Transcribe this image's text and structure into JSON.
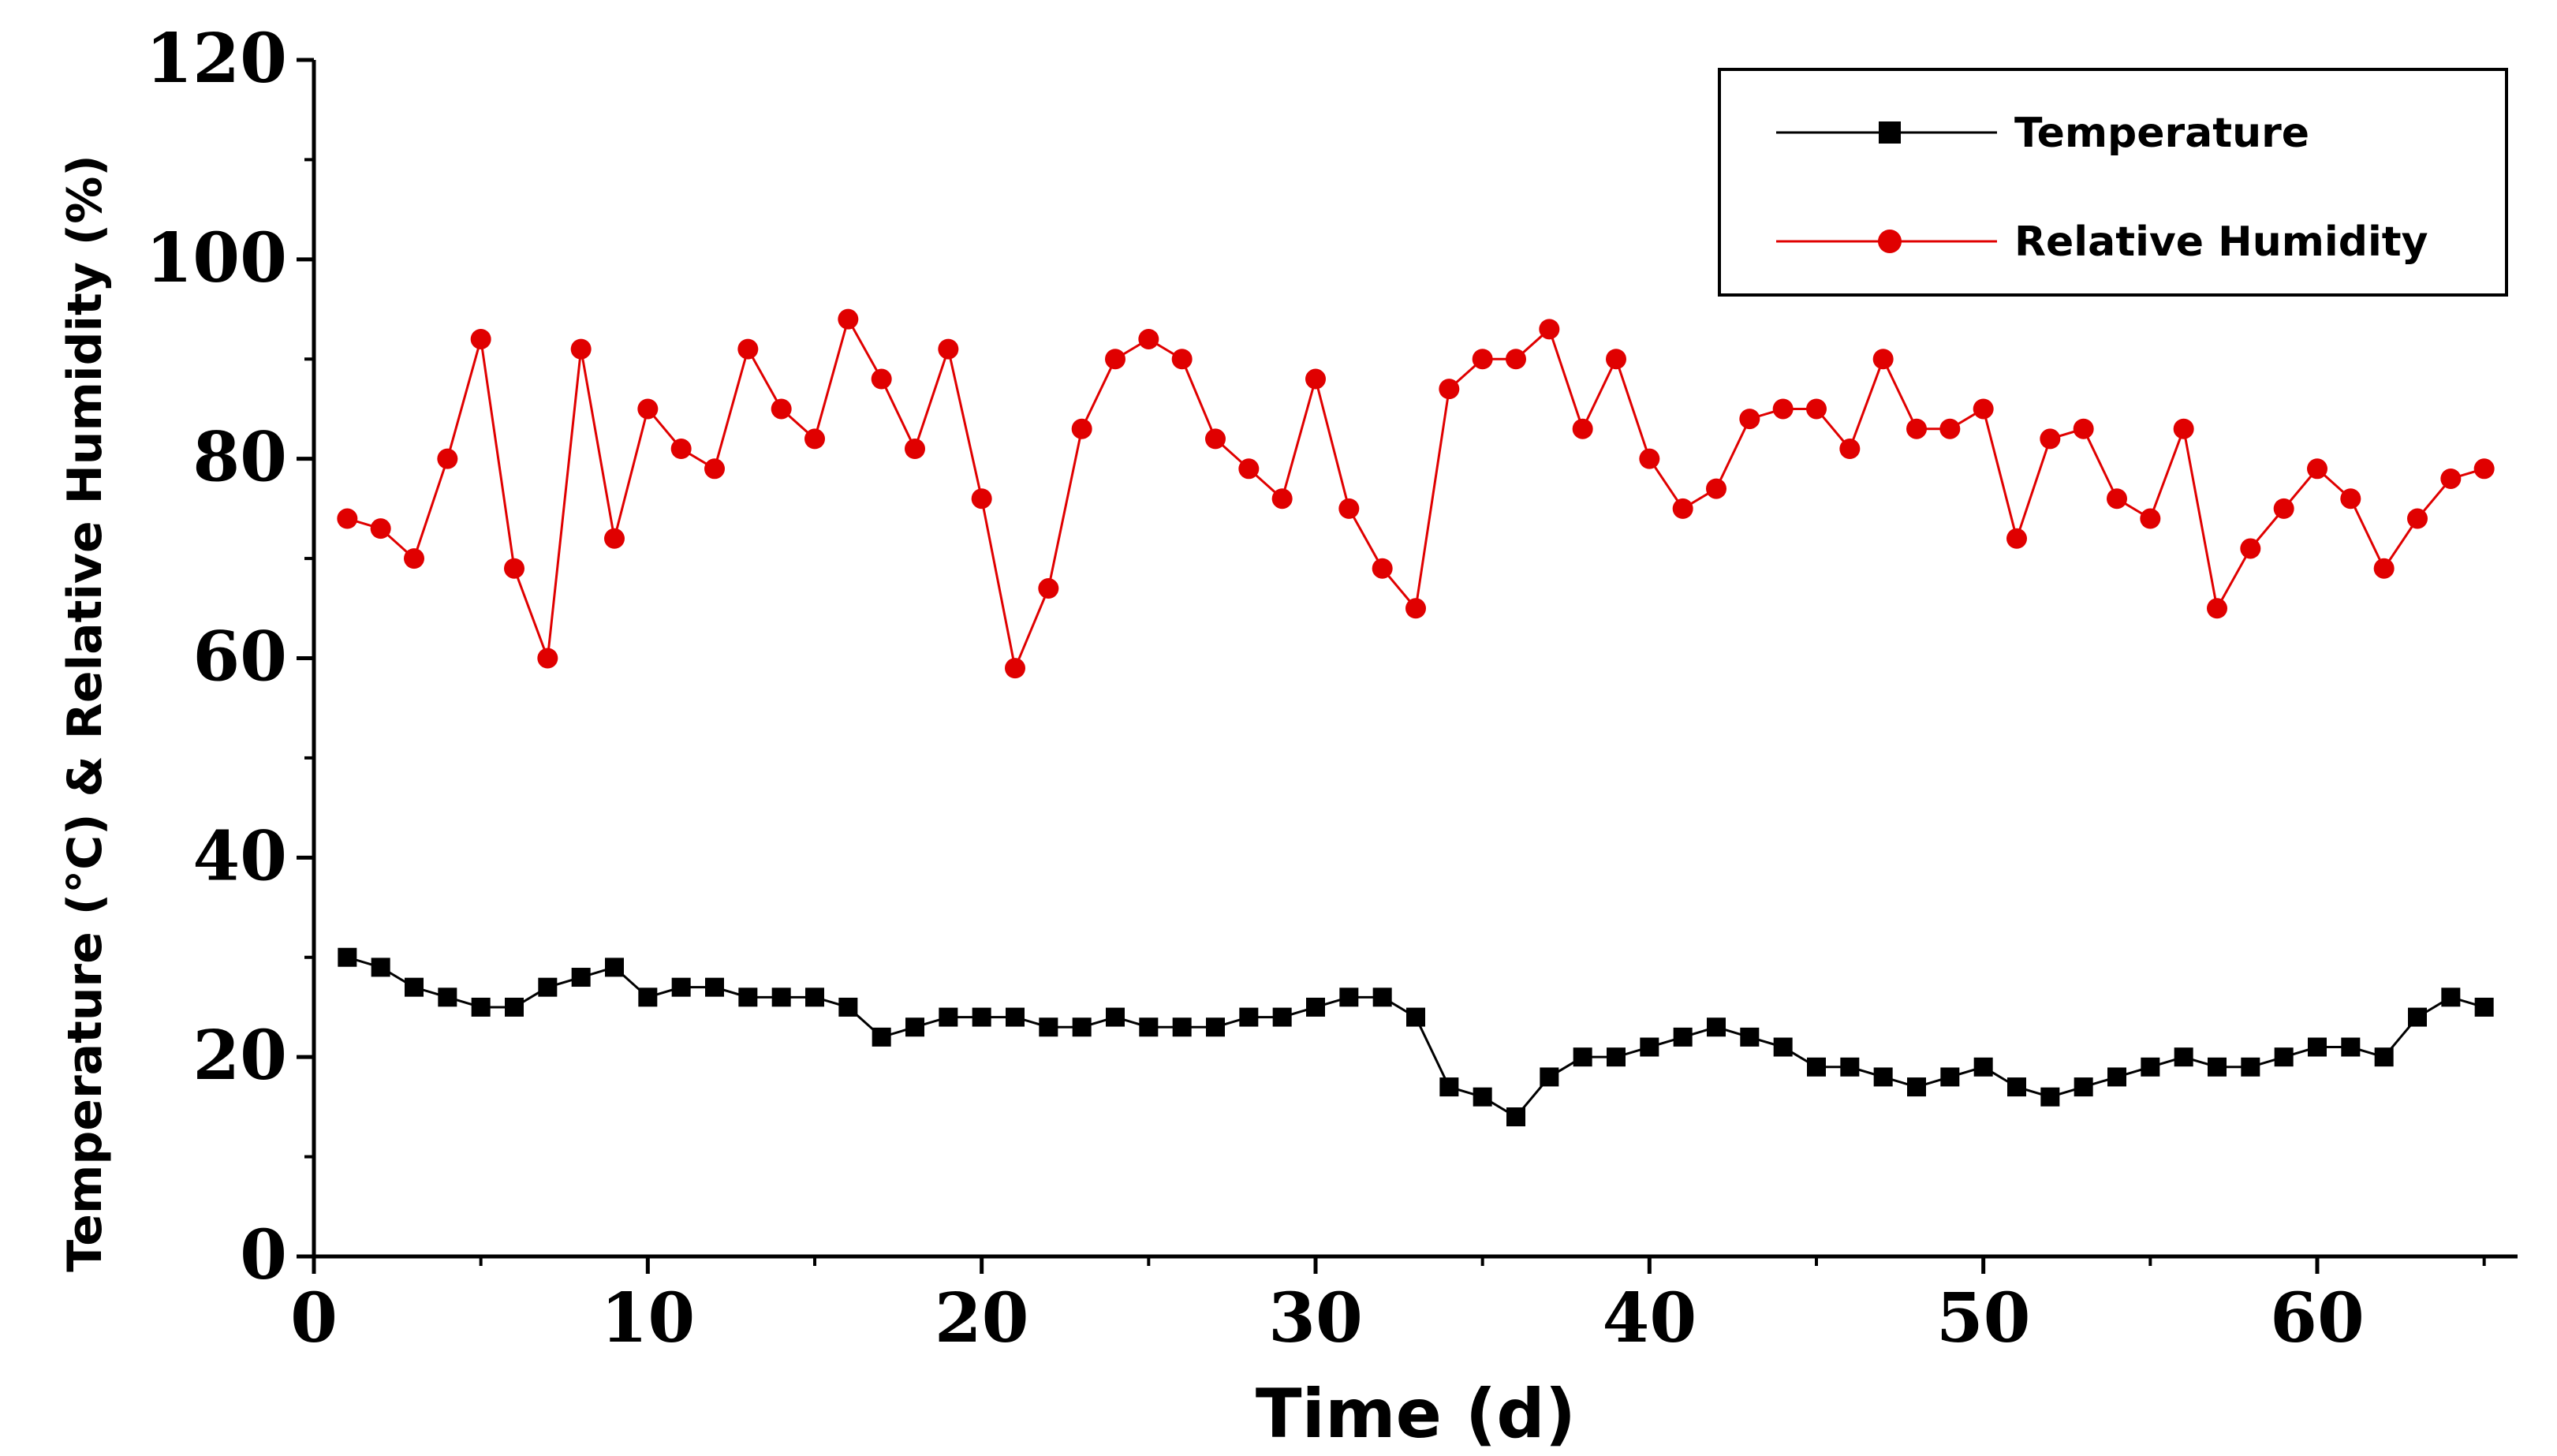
{
  "chart_data": {
    "type": "line",
    "title": "",
    "xlabel": "Time (d)",
    "ylabel": "Temperature (°C) & Relative Humidity (%)",
    "xlim": [
      0,
      66
    ],
    "ylim": [
      0,
      120
    ],
    "xticks": [
      0,
      10,
      20,
      30,
      40,
      50,
      60
    ],
    "yticks": [
      0,
      20,
      40,
      60,
      80,
      100,
      120
    ],
    "grid": false,
    "legend_position": "top-right",
    "series": [
      {
        "name": "Temperature",
        "color": "#000000",
        "marker": "square",
        "x": [
          1,
          2,
          3,
          4,
          5,
          6,
          7,
          8,
          9,
          10,
          11,
          12,
          13,
          14,
          15,
          16,
          17,
          18,
          19,
          20,
          21,
          22,
          23,
          24,
          25,
          26,
          27,
          28,
          29,
          30,
          31,
          32,
          33,
          34,
          35,
          36,
          37,
          38,
          39,
          40,
          41,
          42,
          43,
          44,
          45,
          46,
          47,
          48,
          49,
          50,
          51,
          52,
          53,
          54,
          55,
          56,
          57,
          58,
          59,
          60,
          61,
          62,
          63,
          64,
          65
        ],
        "values": [
          30,
          29,
          27,
          26,
          25,
          25,
          27,
          28,
          29,
          26,
          27,
          27,
          26,
          26,
          26,
          25,
          22,
          23,
          24,
          24,
          24,
          23,
          23,
          24,
          23,
          23,
          23,
          24,
          24,
          25,
          26,
          26,
          24,
          17,
          16,
          14,
          18,
          20,
          20,
          21,
          22,
          23,
          22,
          21,
          19,
          19,
          18,
          17,
          18,
          19,
          17,
          16,
          17,
          18,
          19,
          20,
          19,
          19,
          20,
          21,
          21,
          20,
          24,
          26,
          25
        ]
      },
      {
        "name": "Relative Humidity",
        "color": "#e00000",
        "marker": "circle",
        "x": [
          1,
          2,
          3,
          4,
          5,
          6,
          7,
          8,
          9,
          10,
          11,
          12,
          13,
          14,
          15,
          16,
          17,
          18,
          19,
          20,
          21,
          22,
          23,
          24,
          25,
          26,
          27,
          28,
          29,
          30,
          31,
          32,
          33,
          34,
          35,
          36,
          37,
          38,
          39,
          40,
          41,
          42,
          43,
          44,
          45,
          46,
          47,
          48,
          49,
          50,
          51,
          52,
          53,
          54,
          55,
          56,
          57,
          58,
          59,
          60,
          61,
          62,
          63,
          64,
          65
        ],
        "values": [
          74,
          73,
          70,
          80,
          92,
          69,
          60,
          91,
          72,
          85,
          81,
          79,
          91,
          85,
          82,
          94,
          88,
          81,
          91,
          76,
          59,
          67,
          83,
          90,
          92,
          90,
          82,
          79,
          76,
          88,
          75,
          69,
          65,
          87,
          90,
          90,
          93,
          83,
          90,
          80,
          75,
          77,
          84,
          85,
          85,
          81,
          90,
          83,
          83,
          85,
          72,
          82,
          83,
          76,
          74,
          83,
          65,
          71,
          75,
          79,
          76,
          69,
          74,
          78,
          79
        ]
      }
    ]
  }
}
